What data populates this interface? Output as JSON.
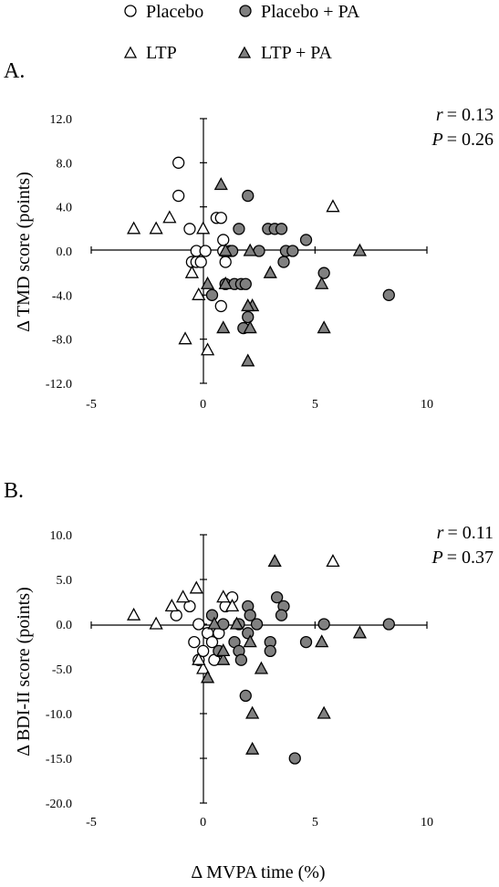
{
  "legend": [
    {
      "label": "Placebo",
      "marker": "circle",
      "fill": "#ffffff"
    },
    {
      "label": "Placebo + PA",
      "marker": "circle",
      "fill": "#808080"
    },
    {
      "label": "LTP",
      "marker": "triangle",
      "fill": "#ffffff"
    },
    {
      "label": "LTP + PA",
      "marker": "triangle",
      "fill": "#808080"
    }
  ],
  "xlabel": "Δ MVPA time (%)",
  "colors": {
    "open_fill": "#ffffff",
    "filled_fill": "#808080",
    "stroke": "#000000"
  },
  "panel_a": {
    "letter": "A.",
    "stat_r_symbol": "r",
    "stat_r_value": "= 0.13",
    "stat_p_symbol": "P",
    "stat_p_value": "= 0.26"
  },
  "panel_b": {
    "letter": "B.",
    "stat_r_symbol": "r",
    "stat_r_value": "= 0.11",
    "stat_p_symbol": "P",
    "stat_p_value": "= 0.37"
  },
  "chart_data": [
    {
      "type": "scatter",
      "ylabel": "Δ TMD score (points)",
      "xlabel": "",
      "xlim": [
        -5,
        10
      ],
      "ylim": [
        -12,
        12
      ],
      "xticks": [
        "-5",
        "0",
        "5",
        "10"
      ],
      "yticks": [
        "12.0",
        "8.0",
        "4.0",
        "0.0",
        "-4.0",
        "-8.0",
        "-12.0"
      ],
      "series": [
        {
          "name": "Placebo",
          "marker": "circle",
          "filled": false,
          "points": [
            [
              -1.1,
              8
            ],
            [
              -1.1,
              5
            ],
            [
              -0.6,
              2
            ],
            [
              0.6,
              3
            ],
            [
              0.8,
              3
            ],
            [
              -0.3,
              0
            ],
            [
              0.1,
              0
            ],
            [
              0.9,
              1
            ],
            [
              0.9,
              0
            ],
            [
              1,
              -1
            ],
            [
              1.2,
              0
            ],
            [
              0.8,
              -5
            ],
            [
              -0.5,
              -1
            ],
            [
              -0.3,
              -1
            ],
            [
              -0.1,
              -1
            ]
          ]
        },
        {
          "name": "Placebo + PA",
          "marker": "circle",
          "filled": true,
          "points": [
            [
              2,
              5
            ],
            [
              1.6,
              2
            ],
            [
              2.9,
              2
            ],
            [
              3.2,
              2
            ],
            [
              3.5,
              2
            ],
            [
              4.6,
              1
            ],
            [
              1.3,
              0
            ],
            [
              2.5,
              0
            ],
            [
              3.7,
              0
            ],
            [
              4,
              0
            ],
            [
              3.6,
              -1
            ],
            [
              5.4,
              -2
            ],
            [
              8.3,
              -4
            ],
            [
              1,
              -3
            ],
            [
              1.4,
              -3
            ],
            [
              1.7,
              -3
            ],
            [
              1.9,
              -3
            ],
            [
              0.4,
              -4
            ],
            [
              2,
              -6
            ],
            [
              1.8,
              -7
            ]
          ]
        },
        {
          "name": "LTP",
          "marker": "triangle",
          "filled": false,
          "points": [
            [
              -3.1,
              2
            ],
            [
              -2.1,
              2
            ],
            [
              -1.5,
              3
            ],
            [
              5.8,
              4
            ],
            [
              0,
              2
            ],
            [
              -0.5,
              -2
            ],
            [
              -0.2,
              -4
            ],
            [
              -0.8,
              -8
            ],
            [
              0.2,
              -9
            ]
          ]
        },
        {
          "name": "LTP + PA",
          "marker": "triangle",
          "filled": true,
          "points": [
            [
              0.8,
              6
            ],
            [
              1,
              0
            ],
            [
              2.1,
              0
            ],
            [
              7,
              0
            ],
            [
              3,
              -2
            ],
            [
              0.2,
              -3
            ],
            [
              1,
              -3
            ],
            [
              5.3,
              -3
            ],
            [
              2.2,
              -5
            ],
            [
              2,
              -5
            ],
            [
              0.9,
              -7
            ],
            [
              2.1,
              -7
            ],
            [
              5.4,
              -7
            ],
            [
              2,
              -10
            ]
          ]
        }
      ]
    },
    {
      "type": "scatter",
      "ylabel": "Δ BDI-II score (points)",
      "xlabel": "Δ MVPA time (%)",
      "xlim": [
        -5,
        10
      ],
      "ylim": [
        -20,
        10
      ],
      "xticks": [
        "-5",
        "0",
        "5",
        "10"
      ],
      "yticks": [
        "10.0",
        "5.0",
        "0.0",
        "-5.0",
        "-10.0",
        "-15.0",
        "-20.0"
      ],
      "series": [
        {
          "name": "Placebo",
          "marker": "circle",
          "filled": false,
          "points": [
            [
              -1.2,
              1
            ],
            [
              -0.6,
              2
            ],
            [
              -0.2,
              0
            ],
            [
              0.2,
              -1
            ],
            [
              0.4,
              -2
            ],
            [
              0.5,
              -4
            ],
            [
              0.7,
              -1
            ],
            [
              1,
              2
            ],
            [
              1.3,
              3
            ],
            [
              -0.2,
              -4
            ],
            [
              -0.4,
              -2
            ],
            [
              0,
              -3
            ]
          ]
        },
        {
          "name": "Placebo + PA",
          "marker": "circle",
          "filled": true,
          "points": [
            [
              0.4,
              1
            ],
            [
              0.9,
              0
            ],
            [
              1.6,
              0
            ],
            [
              1.4,
              -2
            ],
            [
              1.6,
              -3
            ],
            [
              1.7,
              -4
            ],
            [
              2,
              2
            ],
            [
              2,
              -1
            ],
            [
              2.1,
              1
            ],
            [
              2.4,
              0
            ],
            [
              3.3,
              3
            ],
            [
              3.6,
              2
            ],
            [
              3.5,
              1
            ],
            [
              3,
              -2
            ],
            [
              3,
              -3
            ],
            [
              4.6,
              -2
            ],
            [
              5.4,
              0
            ],
            [
              8.3,
              0
            ],
            [
              1.9,
              -8
            ],
            [
              4.1,
              -15
            ],
            [
              0.7,
              -3
            ]
          ]
        },
        {
          "name": "LTP",
          "marker": "triangle",
          "filled": false,
          "points": [
            [
              -3.1,
              1
            ],
            [
              -2.1,
              0
            ],
            [
              -1.4,
              2
            ],
            [
              -0.9,
              3
            ],
            [
              -0.3,
              4
            ],
            [
              0,
              -5
            ],
            [
              0.9,
              3
            ],
            [
              1.3,
              2
            ],
            [
              5.8,
              7
            ],
            [
              -0.2,
              -4
            ]
          ]
        },
        {
          "name": "LTP + PA",
          "marker": "triangle",
          "filled": true,
          "points": [
            [
              3.2,
              7
            ],
            [
              0.2,
              -6
            ],
            [
              0.9,
              -4
            ],
            [
              2.1,
              -2
            ],
            [
              2.2,
              -10
            ],
            [
              2.2,
              -14
            ],
            [
              2.6,
              -5
            ],
            [
              5.3,
              -2
            ],
            [
              5.4,
              -10
            ],
            [
              7,
              -1
            ],
            [
              1.5,
              0
            ],
            [
              0.9,
              -3
            ],
            [
              0.5,
              0
            ]
          ]
        }
      ]
    }
  ]
}
